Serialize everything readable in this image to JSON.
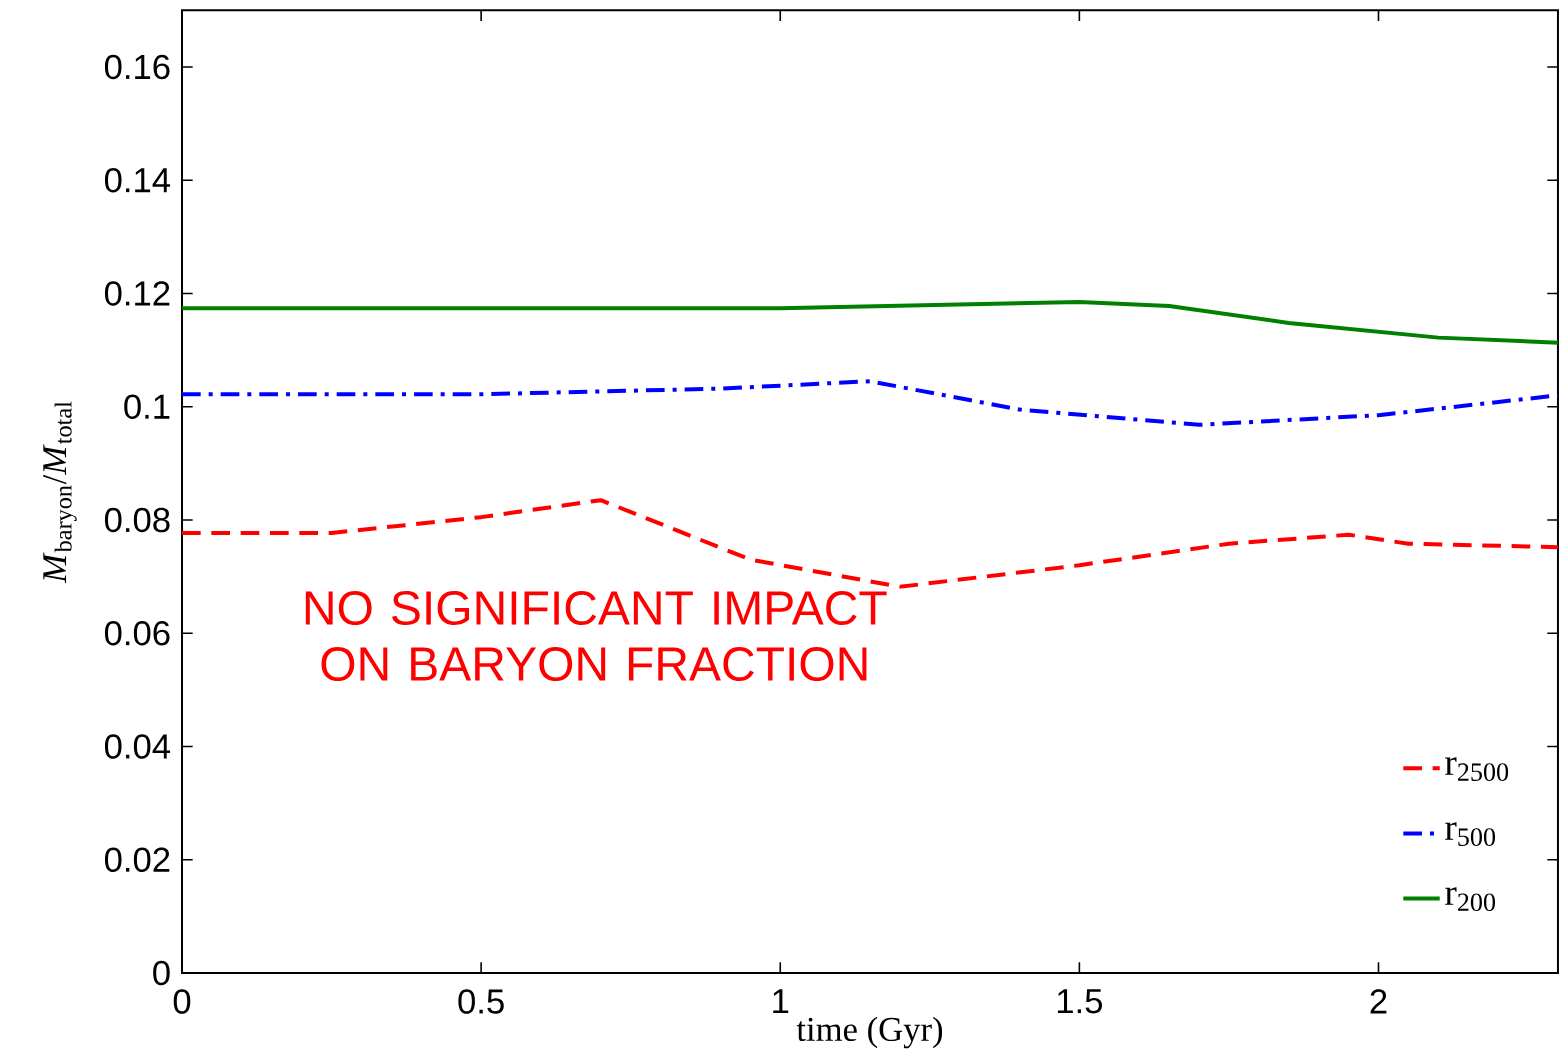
{
  "chart_data": {
    "type": "line",
    "xlabel": "time (Gyr)",
    "ylabel": "*M*$_{baryon}$/*M*$_{total}$",
    "xlim": [
      0,
      2.3
    ],
    "ylim": [
      0,
      0.17
    ],
    "xticks": [
      0,
      0.5,
      1,
      1.5,
      2
    ],
    "yticks": [
      0,
      0.02,
      0.04,
      0.06,
      0.08,
      0.1,
      0.12,
      0.14,
      0.16
    ],
    "legend": "bottom right",
    "grid": false,
    "marker": "none",
    "annotations": [
      "NO SIGNIFICANT IMPACT ON BARYON FRACTION"
    ],
    "series": [
      {
        "name": "r$_{2500}$",
        "color": "#ff0000",
        "line_style": "dashed",
        "x": [
          0,
          0.25,
          0.5,
          0.7,
          0.95,
          1.2,
          1.5,
          1.75,
          1.95,
          2.05,
          2.3
        ],
        "values": [
          0.0777,
          0.0777,
          0.0805,
          0.0835,
          0.073,
          0.0682,
          0.072,
          0.0758,
          0.0774,
          0.0758,
          0.0752
        ]
      },
      {
        "name": "r$_{500}$",
        "color": "#0000ff",
        "line_style": "dashdot",
        "x": [
          0,
          0.5,
          0.9,
          1.15,
          1.4,
          1.7,
          2.0,
          2.3
        ],
        "values": [
          0.1022,
          0.1022,
          0.1032,
          0.1045,
          0.0995,
          0.0968,
          0.0985,
          0.102
        ]
      },
      {
        "name": "r$_{200}$",
        "color": "#008000",
        "line_style": "solid",
        "x": [
          0,
          0.5,
          1.0,
          1.5,
          1.65,
          1.85,
          2.1,
          2.3
        ],
        "values": [
          0.1174,
          0.1174,
          0.1174,
          0.1185,
          0.1178,
          0.1148,
          0.1122,
          0.1113
        ]
      }
    ]
  }
}
